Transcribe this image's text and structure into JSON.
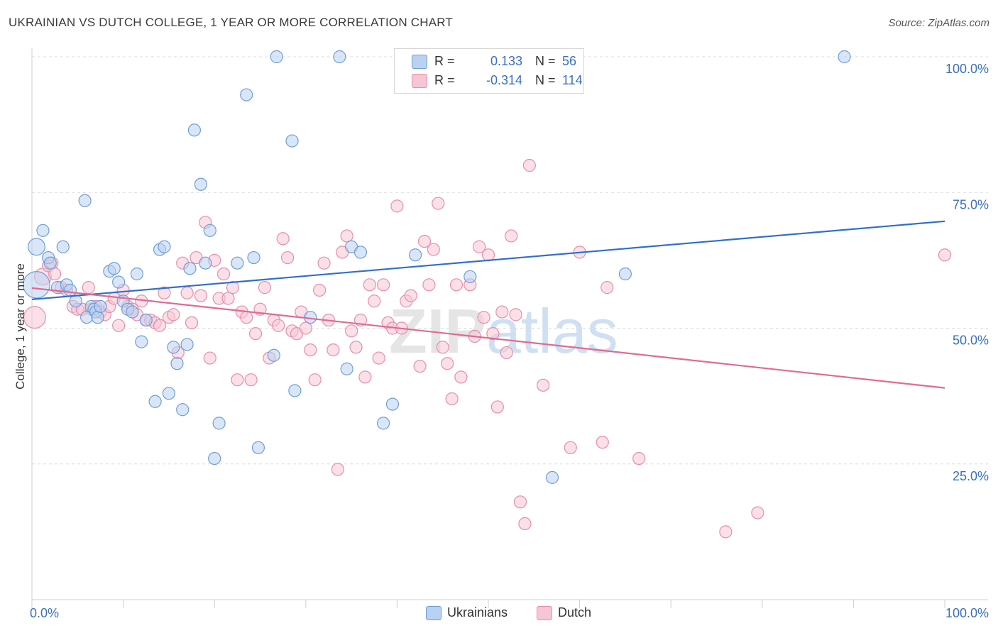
{
  "title": "UKRAINIAN VS DUTCH COLLEGE, 1 YEAR OR MORE CORRELATION CHART",
  "source": "Source: ZipAtlas.com",
  "watermark": "ZIPatlas",
  "legend": {
    "r_label": "R =",
    "n_label": "N =",
    "rows": [
      {
        "r": "0.133",
        "n": "56"
      },
      {
        "r": "-0.314",
        "n": "114"
      }
    ]
  },
  "bottom_legend": [
    "Ukrainians",
    "Dutch"
  ],
  "colors": {
    "blue_fill": "#b9d2f1",
    "blue_stroke": "#6f9ed8",
    "blue_line": "#2f6fca",
    "pink_fill": "#f7c6d5",
    "pink_stroke": "#e68fab",
    "pink_line": "#e06a94",
    "tick_label": "#3a6fc4",
    "grid": "#dcdcdc"
  },
  "chart_data": {
    "type": "scatter",
    "xlabel": "",
    "ylabel": "College, 1 year or more",
    "xlim": [
      0,
      100
    ],
    "ylim": [
      0,
      100
    ],
    "x_tick_labels": [
      "0.0%",
      "100.0%"
    ],
    "y_ticks": [
      {
        "value": 100,
        "label": "100.0%"
      },
      {
        "value": 75,
        "label": "75.0%"
      },
      {
        "value": 50,
        "label": "50.0%"
      },
      {
        "value": 25,
        "label": "25.0%"
      }
    ],
    "grid": true,
    "legend_position": "top-center",
    "series": [
      {
        "name": "Ukrainians",
        "r": 0.133,
        "n": 56,
        "trend": {
          "x": [
            0,
            100
          ],
          "y": [
            55.3,
            69.7
          ]
        },
        "points": [
          [
            0.5,
            58,
            2.2
          ],
          [
            0.5,
            65,
            1.4
          ],
          [
            1.2,
            68,
            1
          ],
          [
            1.8,
            63,
            1
          ],
          [
            2,
            62,
            1
          ],
          [
            2.8,
            57.5,
            1
          ],
          [
            3.4,
            65,
            1
          ],
          [
            3.8,
            58,
            1
          ],
          [
            4.2,
            57,
            1
          ],
          [
            4.8,
            55,
            1
          ],
          [
            5.8,
            73.5,
            1
          ],
          [
            6,
            52,
            1
          ],
          [
            6.5,
            54,
            1
          ],
          [
            6.8,
            53.5,
            1
          ],
          [
            7,
            53,
            1
          ],
          [
            7.2,
            52,
            1
          ],
          [
            7.5,
            54,
            1
          ],
          [
            8.5,
            60.5,
            1
          ],
          [
            9,
            61,
            1
          ],
          [
            9.5,
            58.5,
            1
          ],
          [
            10,
            55,
            1
          ],
          [
            10.5,
            53.5,
            1
          ],
          [
            11,
            53,
            1
          ],
          [
            11.5,
            60,
            1
          ],
          [
            12,
            47.5,
            1
          ],
          [
            12.5,
            51.5,
            1
          ],
          [
            13.5,
            36.5,
            1
          ],
          [
            14,
            64.5,
            1
          ],
          [
            14.5,
            65,
            1
          ],
          [
            15,
            38,
            1
          ],
          [
            15.5,
            46.5,
            1
          ],
          [
            15.9,
            43.5,
            1
          ],
          [
            16.5,
            35,
            1
          ],
          [
            17,
            47,
            1
          ],
          [
            17.3,
            61,
            1
          ],
          [
            17.8,
            86.5,
            1
          ],
          [
            18.5,
            76.5,
            1
          ],
          [
            19,
            62,
            1
          ],
          [
            19.5,
            68,
            1
          ],
          [
            20.5,
            32.5,
            1
          ],
          [
            20,
            26,
            1
          ],
          [
            22.5,
            62,
            1
          ],
          [
            23.5,
            93,
            1
          ],
          [
            24.3,
            63,
            1
          ],
          [
            24.8,
            28,
            1
          ],
          [
            26.5,
            45,
            1
          ],
          [
            26.8,
            100,
            1
          ],
          [
            28.5,
            84.5,
            1
          ],
          [
            28.8,
            38.5,
            1
          ],
          [
            30.5,
            52,
            1
          ],
          [
            33.7,
            100,
            1
          ],
          [
            34.5,
            42.5,
            1
          ],
          [
            35,
            65,
            1
          ],
          [
            36,
            64,
            1
          ],
          [
            38.5,
            32.5,
            1
          ],
          [
            39.5,
            36,
            1
          ],
          [
            42,
            63.5,
            1
          ],
          [
            48,
            59.5,
            1
          ],
          [
            57,
            22.5,
            1
          ],
          [
            65,
            60,
            1
          ],
          [
            89,
            100,
            1
          ]
        ]
      },
      {
        "name": "Dutch",
        "r": -0.314,
        "n": 114,
        "trend": {
          "x": [
            0,
            100
          ],
          "y": [
            57.4,
            39
          ]
        },
        "points": [
          [
            0.3,
            52,
            1.8
          ],
          [
            1.2,
            59.5,
            1.4
          ],
          [
            1.8,
            61.5,
            1
          ],
          [
            2.2,
            62,
            1
          ],
          [
            2.5,
            60,
            1
          ],
          [
            3.2,
            57.5,
            1
          ],
          [
            3.8,
            57,
            1
          ],
          [
            4.5,
            54,
            1
          ],
          [
            5,
            53.5,
            1
          ],
          [
            5.5,
            53.5,
            1
          ],
          [
            6.2,
            57.5,
            1
          ],
          [
            6.5,
            53.5,
            1
          ],
          [
            7,
            54,
            1
          ],
          [
            7.5,
            53,
            1
          ],
          [
            8,
            52.5,
            1
          ],
          [
            8.5,
            54,
            1
          ],
          [
            9,
            55.5,
            1
          ],
          [
            9.5,
            50.5,
            1
          ],
          [
            10,
            57,
            1
          ],
          [
            10.5,
            54,
            1
          ],
          [
            11,
            53.5,
            1
          ],
          [
            11.5,
            52.5,
            1
          ],
          [
            12,
            55,
            1
          ],
          [
            12.5,
            51.5,
            1
          ],
          [
            13,
            51.5,
            1
          ],
          [
            13.5,
            51,
            1
          ],
          [
            14,
            50.5,
            1
          ],
          [
            14.5,
            56.5,
            1
          ],
          [
            15,
            52,
            1
          ],
          [
            15.5,
            52.5,
            1
          ],
          [
            16,
            45.5,
            1
          ],
          [
            16.5,
            62,
            1
          ],
          [
            17,
            56.5,
            1
          ],
          [
            17.5,
            51,
            1
          ],
          [
            18,
            63,
            1
          ],
          [
            18.5,
            56,
            1
          ],
          [
            19,
            69.5,
            1
          ],
          [
            19.5,
            44.5,
            1
          ],
          [
            20,
            62.5,
            1
          ],
          [
            20.5,
            55.5,
            1
          ],
          [
            21,
            60,
            1
          ],
          [
            21.5,
            55.5,
            1
          ],
          [
            22,
            57.5,
            1
          ],
          [
            22.5,
            40.5,
            1
          ],
          [
            23,
            53,
            1
          ],
          [
            23.5,
            52,
            1
          ],
          [
            24,
            40.5,
            1
          ],
          [
            24.5,
            49,
            1
          ],
          [
            25,
            53.5,
            1
          ],
          [
            25.5,
            57.5,
            1
          ],
          [
            26,
            44.5,
            1
          ],
          [
            26.5,
            51.5,
            1
          ],
          [
            27,
            50.5,
            1
          ],
          [
            27.5,
            66.5,
            1
          ],
          [
            28,
            63,
            1
          ],
          [
            28.5,
            49.5,
            1
          ],
          [
            29,
            49,
            1
          ],
          [
            29.5,
            53,
            1
          ],
          [
            30,
            50,
            1
          ],
          [
            30.5,
            46,
            1
          ],
          [
            31,
            40.5,
            1
          ],
          [
            31.5,
            57,
            1
          ],
          [
            32,
            62,
            1
          ],
          [
            32.5,
            51.5,
            1
          ],
          [
            33,
            46,
            1
          ],
          [
            33.5,
            24,
            1
          ],
          [
            34,
            64,
            1
          ],
          [
            34.5,
            67,
            1
          ],
          [
            35,
            49.5,
            1
          ],
          [
            35.5,
            46.5,
            1
          ],
          [
            36,
            51.5,
            1
          ],
          [
            36.5,
            41,
            1
          ],
          [
            37,
            58,
            1
          ],
          [
            37.5,
            55,
            1
          ],
          [
            38,
            44.5,
            1
          ],
          [
            38.5,
            58,
            1
          ],
          [
            39,
            51,
            1
          ],
          [
            39.5,
            50,
            1
          ],
          [
            40,
            72.5,
            1
          ],
          [
            40.5,
            50,
            1
          ],
          [
            41,
            55,
            1
          ],
          [
            41.5,
            56,
            1
          ],
          [
            42.5,
            43,
            1
          ],
          [
            43,
            66,
            1
          ],
          [
            43.5,
            58,
            1
          ],
          [
            44,
            64.5,
            1
          ],
          [
            44.5,
            73,
            1
          ],
          [
            45,
            46.5,
            1
          ],
          [
            45.5,
            43.5,
            1
          ],
          [
            46,
            37,
            1
          ],
          [
            46.5,
            58,
            1
          ],
          [
            47,
            41,
            1
          ],
          [
            48,
            58,
            1
          ],
          [
            48.5,
            48.5,
            1
          ],
          [
            49,
            65,
            1
          ],
          [
            49.5,
            52,
            1
          ],
          [
            50,
            63.5,
            1
          ],
          [
            50.5,
            49,
            1
          ],
          [
            51,
            35.5,
            1
          ],
          [
            51.5,
            53,
            1
          ],
          [
            52,
            45.5,
            1
          ],
          [
            52.5,
            67,
            1
          ],
          [
            53,
            52.5,
            1
          ],
          [
            53.5,
            18,
            1
          ],
          [
            54,
            14,
            1
          ],
          [
            54.5,
            80,
            1
          ],
          [
            56,
            39.5,
            1
          ],
          [
            59,
            28,
            1
          ],
          [
            60,
            64,
            1
          ],
          [
            62.5,
            29,
            1
          ],
          [
            63,
            57.5,
            1
          ],
          [
            66.5,
            26,
            1
          ],
          [
            76,
            12.5,
            1
          ],
          [
            79.5,
            16,
            1
          ],
          [
            100,
            63.5,
            1
          ]
        ]
      }
    ]
  }
}
